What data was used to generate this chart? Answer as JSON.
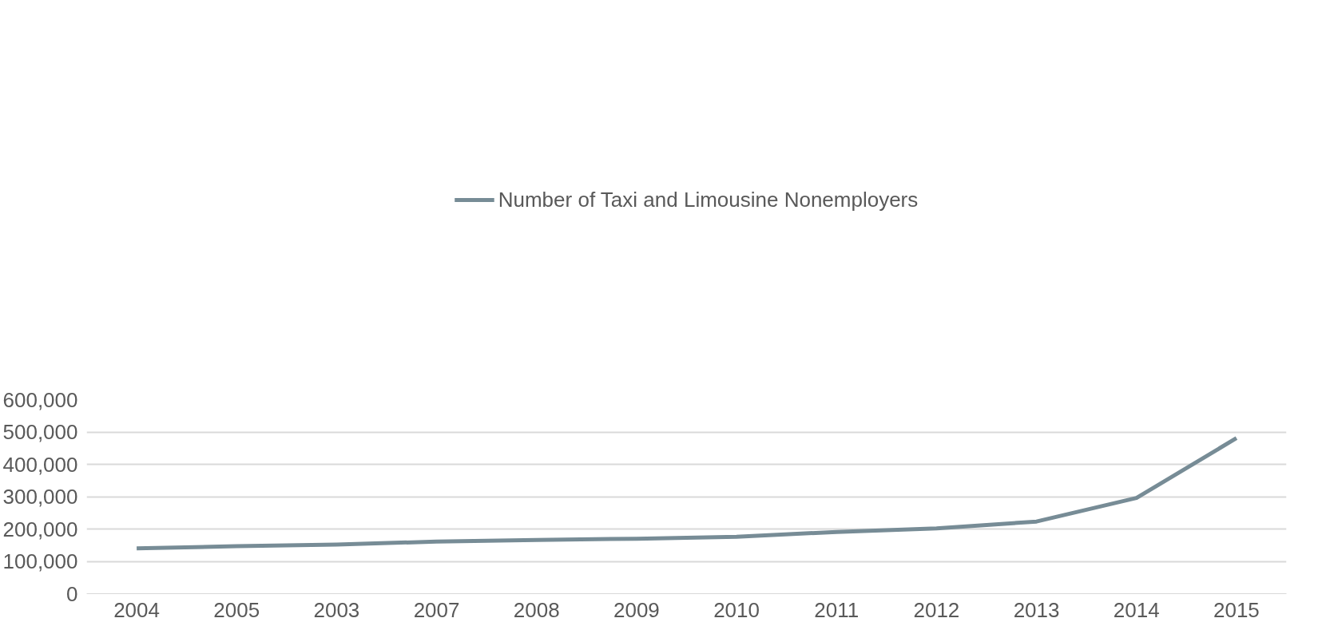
{
  "chart_data": {
    "type": "line",
    "categories": [
      "2004",
      "2005",
      "2003",
      "2007",
      "2008",
      "2009",
      "2010",
      "2011",
      "2012",
      "2013",
      "2014",
      "2015"
    ],
    "series": [
      {
        "name": "Number of Taxi and Limousine Nonemployers",
        "color": "#778c96",
        "values": [
          140000,
          147000,
          152000,
          161000,
          166000,
          170000,
          176000,
          191000,
          202000,
          223000,
          296000,
          481000
        ]
      }
    ],
    "ylim": [
      0,
      600000
    ],
    "yticks": [
      {
        "value": 0,
        "label": "0"
      },
      {
        "value": 100000,
        "label": "100,000"
      },
      {
        "value": 200000,
        "label": "200,000"
      },
      {
        "value": 300000,
        "label": "300,000"
      },
      {
        "value": 400000,
        "label": "400,000"
      },
      {
        "value": 500000,
        "label": "500,000"
      },
      {
        "value": 600000,
        "label": "600,000"
      }
    ],
    "grid": "y",
    "legend": "top",
    "marker": "none",
    "line_style": "solid"
  }
}
